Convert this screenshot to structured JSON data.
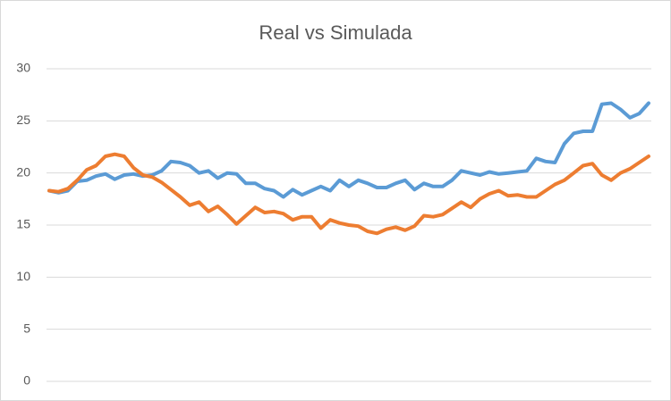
{
  "chart_data": {
    "type": "line",
    "title": "Real vs Simulada",
    "categories": [
      null,
      null,
      null,
      null,
      null,
      null,
      null,
      null,
      null,
      null,
      null,
      null,
      null,
      null,
      null,
      null,
      null,
      null,
      null,
      null,
      null,
      null,
      null,
      null,
      null,
      null,
      null,
      null,
      null,
      null,
      null,
      null,
      null,
      null,
      null,
      null,
      null,
      null,
      null,
      null,
      null,
      null,
      null,
      null,
      null,
      null,
      null,
      null,
      null,
      null,
      null,
      null,
      null,
      null,
      null,
      null,
      null,
      null,
      null,
      null,
      null,
      null,
      null,
      null,
      null
    ],
    "series": [
      {
        "color": "#5b9bd5",
        "values": [
          18.3,
          18.1,
          18.3,
          19.2,
          19.3,
          19.7,
          19.9,
          19.4,
          19.8,
          19.9,
          19.7,
          19.8,
          20.2,
          21.1,
          21.0,
          20.7,
          20.0,
          20.2,
          19.5,
          20.0,
          19.9,
          19.0,
          19.0,
          18.5,
          18.3,
          17.7,
          18.4,
          17.9,
          18.3,
          18.7,
          18.3,
          19.3,
          18.7,
          19.3,
          19.0,
          18.6,
          18.6,
          19.0,
          19.3,
          18.4,
          19.0,
          18.7,
          18.7,
          19.3,
          20.2,
          20.0,
          19.8,
          20.1,
          19.9,
          20.0,
          20.1,
          20.2,
          21.4,
          21.1,
          21.0,
          22.8,
          23.8,
          24.0,
          24.0,
          26.6,
          26.7,
          26.1,
          25.3,
          25.7,
          26.7
        ]
      },
      {
        "color": "#ed7d31",
        "values": [
          18.3,
          18.2,
          18.5,
          19.3,
          20.3,
          20.7,
          21.6,
          21.8,
          21.6,
          20.5,
          19.8,
          19.6,
          19.1,
          18.4,
          17.7,
          16.9,
          17.2,
          16.3,
          16.8,
          16.0,
          15.1,
          15.9,
          16.7,
          16.2,
          16.3,
          16.1,
          15.5,
          15.8,
          15.8,
          14.7,
          15.5,
          15.2,
          15.0,
          14.9,
          14.4,
          14.2,
          14.6,
          14.8,
          14.5,
          14.9,
          15.9,
          15.8,
          16.0,
          16.6,
          17.2,
          16.7,
          17.5,
          18.0,
          18.3,
          17.8,
          17.9,
          17.7,
          17.7,
          18.3,
          18.9,
          19.3,
          20.0,
          20.7,
          20.9,
          19.8,
          19.3,
          20.0,
          20.4,
          21.0,
          21.6
        ]
      }
    ],
    "ylim": [
      0,
      30
    ],
    "yticks": [
      0,
      5,
      10,
      15,
      20,
      25,
      30
    ],
    "grid": true
  }
}
